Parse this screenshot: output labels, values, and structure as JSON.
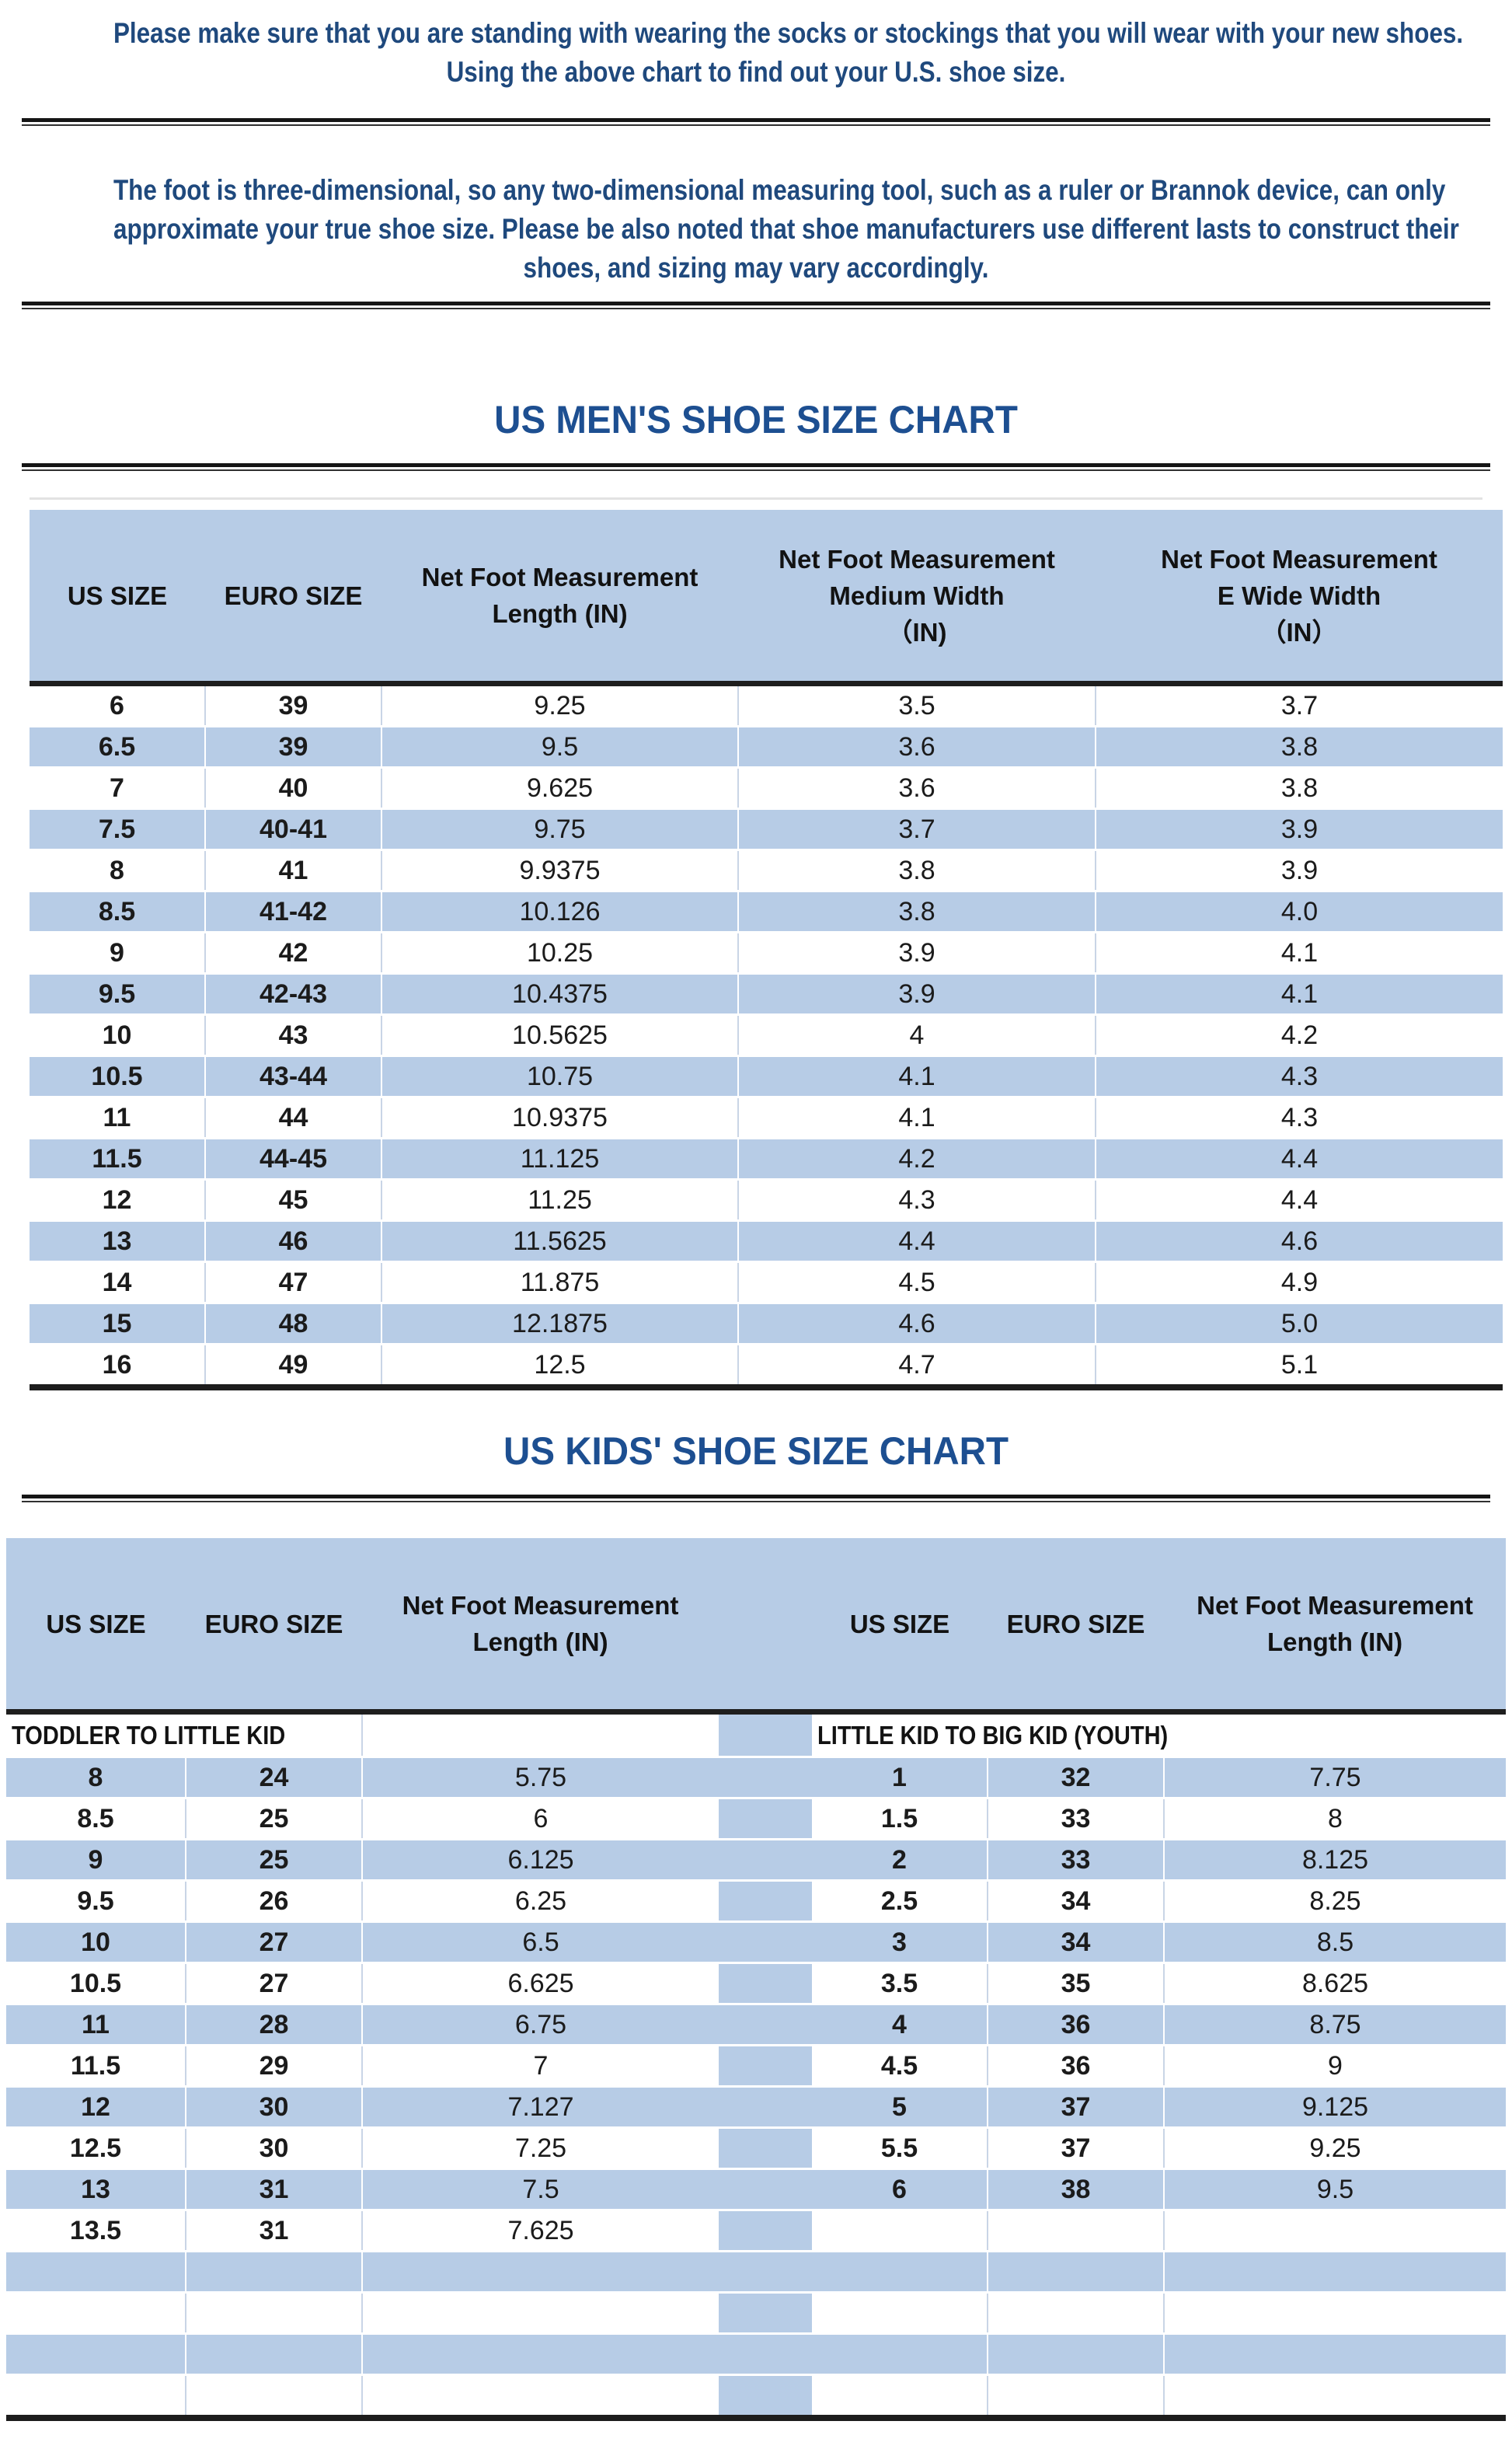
{
  "colors": {
    "accent_blue_fill": "#b7cce6",
    "title_blue": "#1d4f91",
    "paragraph_blue": "#1f497d",
    "dark_rule": "#151515",
    "cell_border_light": "#c9d5e6"
  },
  "intro": {
    "para1_lines": [
      "Please make sure that you are standing with wearing the socks or stockings that you will wear with your new shoes.",
      "Using the above chart to find out your U.S. shoe size."
    ],
    "para2_lines": [
      "The foot is three-dimensional, so any two-dimensional measuring tool, such as a ruler or Brannok device, can only",
      "approximate your true shoe size. Please be also noted that shoe manufacturers use different lasts to construct their",
      "shoes, and sizing may vary accordingly."
    ]
  },
  "mens_chart": {
    "title": "US MEN'S SHOE SIZE CHART",
    "headers": [
      [
        "US SIZE"
      ],
      [
        "EURO SIZE"
      ],
      [
        "Net Foot Measurement",
        "Length (IN)"
      ],
      [
        "Net Foot Measurement",
        "Medium Width",
        "（IN)"
      ],
      [
        "Net Foot Measurement",
        "E Wide Width",
        "（IN）"
      ]
    ],
    "rows": [
      [
        "6",
        "39",
        "9.25",
        "3.5",
        "3.7"
      ],
      [
        "6.5",
        "39",
        "9.5",
        "3.6",
        "3.8"
      ],
      [
        "7",
        "40",
        "9.625",
        "3.6",
        "3.8"
      ],
      [
        "7.5",
        "40-41",
        "9.75",
        "3.7",
        "3.9"
      ],
      [
        "8",
        "41",
        "9.9375",
        "3.8",
        "3.9"
      ],
      [
        "8.5",
        "41-42",
        "10.126",
        "3.8",
        "4.0"
      ],
      [
        "9",
        "42",
        "10.25",
        "3.9",
        "4.1"
      ],
      [
        "9.5",
        "42-43",
        "10.4375",
        "3.9",
        "4.1"
      ],
      [
        "10",
        "43",
        "10.5625",
        "4",
        "4.2"
      ],
      [
        "10.5",
        "43-44",
        "10.75",
        "4.1",
        "4.3"
      ],
      [
        "11",
        "44",
        "10.9375",
        "4.1",
        "4.3"
      ],
      [
        "11.5",
        "44-45",
        "11.125",
        "4.2",
        "4.4"
      ],
      [
        "12",
        "45",
        "11.25",
        "4.3",
        "4.4"
      ],
      [
        "13",
        "46",
        "11.5625",
        "4.4",
        "4.6"
      ],
      [
        "14",
        "47",
        "11.875",
        "4.5",
        "4.9"
      ],
      [
        "15",
        "48",
        "12.1875",
        "4.6",
        "5.0"
      ],
      [
        "16",
        "49",
        "12.5",
        "4.7",
        "5.1"
      ]
    ]
  },
  "kids_chart": {
    "title": "US KIDS' SHOE SIZE CHART",
    "headers": [
      [
        "US SIZE"
      ],
      [
        "EURO SIZE"
      ],
      [
        "Net Foot Measurement",
        "Length (IN)"
      ],
      [],
      [
        "US SIZE"
      ],
      [
        "EURO SIZE"
      ],
      [
        "Net Foot Measurement",
        "Length (IN)"
      ]
    ],
    "section_left": "TODDLER TO LITTLE KID",
    "section_right": "LITTLE KID TO BIG KID (YOUTH)",
    "rows_left": [
      [
        "8",
        "24",
        "5.75"
      ],
      [
        "8.5",
        "25",
        "6"
      ],
      [
        "9",
        "25",
        "6.125"
      ],
      [
        "9.5",
        "26",
        "6.25"
      ],
      [
        "10",
        "27",
        "6.5"
      ],
      [
        "10.5",
        "27",
        "6.625"
      ],
      [
        "11",
        "28",
        "6.75"
      ],
      [
        "11.5",
        "29",
        "7"
      ],
      [
        "12",
        "30",
        "7.127"
      ],
      [
        "12.5",
        "30",
        "7.25"
      ],
      [
        "13",
        "31",
        "7.5"
      ],
      [
        "13.5",
        "31",
        "7.625"
      ]
    ],
    "rows_right": [
      [
        "1",
        "32",
        "7.75"
      ],
      [
        "1.5",
        "33",
        "8"
      ],
      [
        "2",
        "33",
        "8.125"
      ],
      [
        "2.5",
        "34",
        "8.25"
      ],
      [
        "3",
        "34",
        "8.5"
      ],
      [
        "3.5",
        "35",
        "8.625"
      ],
      [
        "4",
        "36",
        "8.75"
      ],
      [
        "4.5",
        "36",
        "9"
      ],
      [
        "5",
        "37",
        "9.125"
      ],
      [
        "5.5",
        "37",
        "9.25"
      ],
      [
        "6",
        "38",
        "9.5"
      ],
      [
        "",
        "",
        ""
      ]
    ],
    "trailing_empty_rows": 4
  }
}
